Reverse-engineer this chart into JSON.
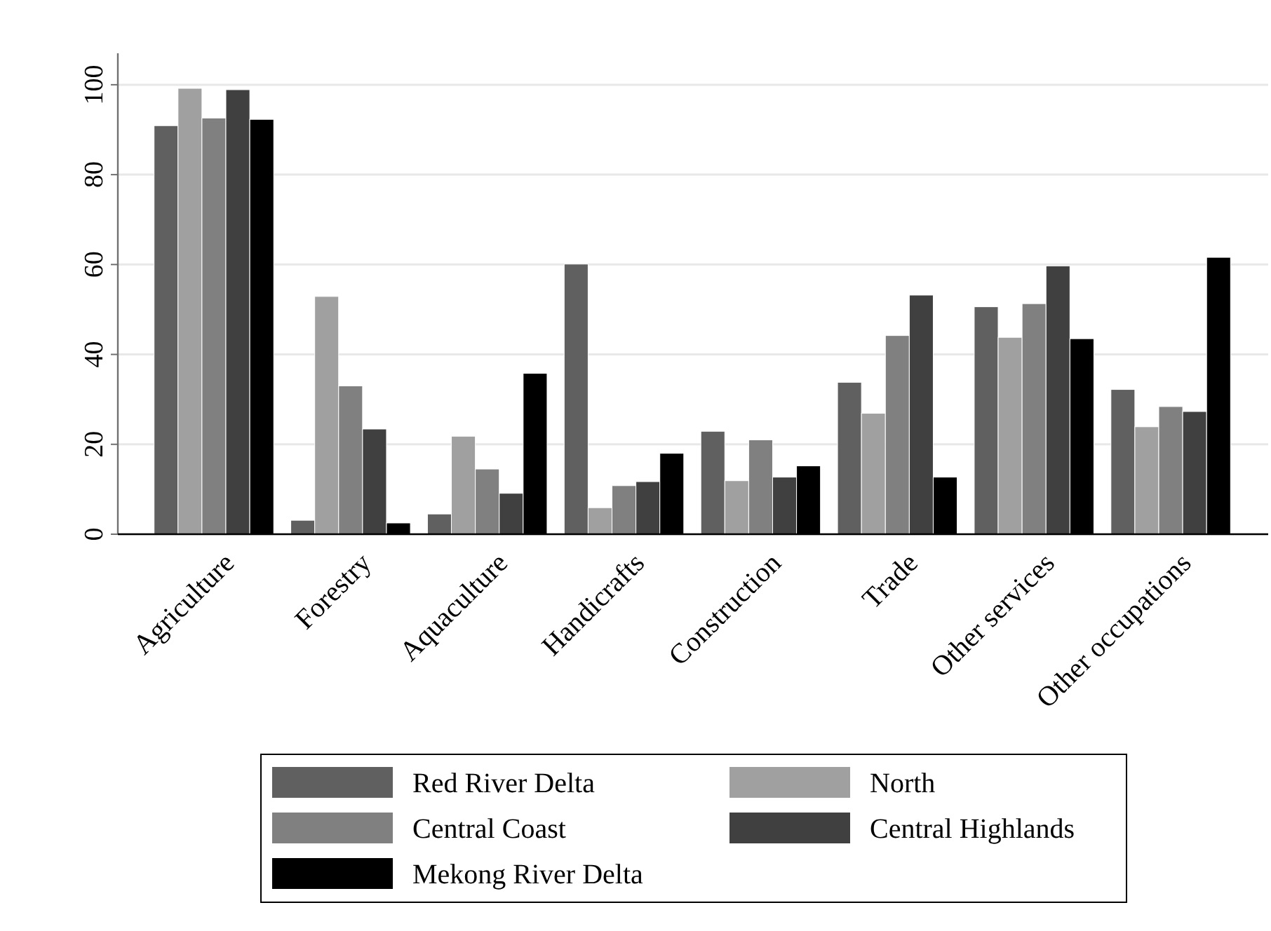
{
  "chart_data": {
    "type": "bar",
    "categories": [
      "Agriculture",
      "Forestry",
      "Aquaculture",
      "Handicrafts",
      "Construction",
      "Trade",
      "Other services",
      "Other occupations"
    ],
    "series": [
      {
        "name": "Red River Delta",
        "color": "#606060",
        "values": [
          90.9,
          3.1,
          4.5,
          60.1,
          22.9,
          33.8,
          50.6,
          32.2
        ]
      },
      {
        "name": "North",
        "color": "#a0a0a0",
        "values": [
          99.2,
          52.9,
          21.8,
          5.9,
          11.9,
          26.9,
          43.8,
          23.9
        ]
      },
      {
        "name": "Central Coast",
        "color": "#808080",
        "values": [
          92.6,
          33.0,
          14.5,
          10.8,
          21.0,
          44.2,
          51.3,
          28.4
        ]
      },
      {
        "name": "Central Highlands",
        "color": "#404040",
        "values": [
          98.9,
          23.4,
          9.1,
          11.7,
          12.7,
          53.2,
          59.7,
          27.3
        ]
      },
      {
        "name": "Mekong River Delta",
        "color": "#000000",
        "values": [
          92.3,
          2.5,
          35.8,
          18.0,
          15.2,
          12.7,
          43.5,
          61.6
        ]
      }
    ],
    "ylim": [
      0,
      107
    ],
    "yticks": [
      0,
      20,
      40,
      60,
      80,
      100
    ],
    "grid": "y",
    "legend": "bottom"
  }
}
